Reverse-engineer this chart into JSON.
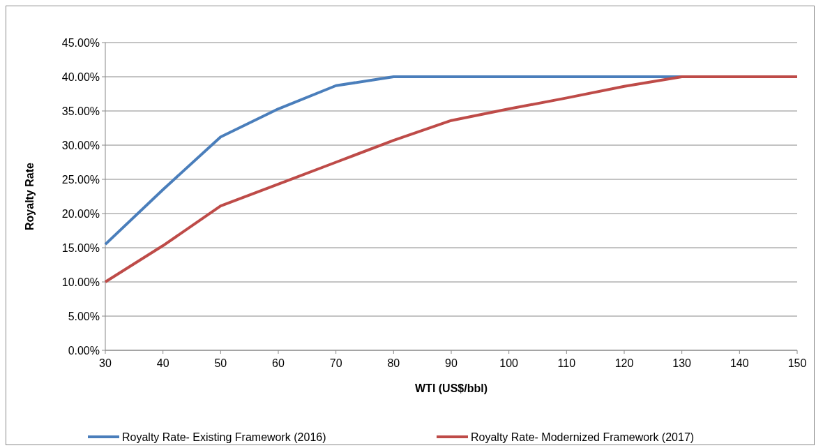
{
  "chart_data": {
    "type": "line",
    "xlabel": "WTI (US$/bbl)",
    "ylabel": "Royalty Rate",
    "x": [
      30,
      40,
      50,
      60,
      70,
      80,
      90,
      100,
      110,
      120,
      130,
      140,
      150
    ],
    "series": [
      {
        "name": "Royalty Rate- Existing Framework (2016)",
        "color": "#4a7ebb",
        "values": [
          15.5,
          23.5,
          31.2,
          35.3,
          38.7,
          40,
          40,
          40,
          40,
          40,
          40,
          null,
          null
        ]
      },
      {
        "name": "Royalty Rate- Modernized Framework (2017)",
        "color": "#be4b48",
        "values": [
          10,
          15.3,
          21.1,
          24.3,
          27.5,
          30.7,
          33.6,
          35.3,
          36.9,
          38.6,
          40,
          40,
          40
        ]
      }
    ],
    "xlim": [
      30,
      150
    ],
    "xticks": [
      30,
      40,
      50,
      60,
      70,
      80,
      90,
      100,
      110,
      120,
      130,
      140,
      150
    ],
    "ylim": [
      0,
      45
    ],
    "yticks": [
      {
        "value": 0,
        "label": "0.00%"
      },
      {
        "value": 5,
        "label": "5.00%"
      },
      {
        "value": 10,
        "label": "10.00%"
      },
      {
        "value": 15,
        "label": "15.00%"
      },
      {
        "value": 20,
        "label": "20.00%"
      },
      {
        "value": 25,
        "label": "25.00%"
      },
      {
        "value": 30,
        "label": "30.00%"
      },
      {
        "value": 35,
        "label": "35.00%"
      },
      {
        "value": 40,
        "label": "40.00%"
      },
      {
        "value": 45,
        "label": "45.00%"
      }
    ],
    "grid": "y",
    "legend": "bottom",
    "marker": "none",
    "line_style": "solid"
  }
}
